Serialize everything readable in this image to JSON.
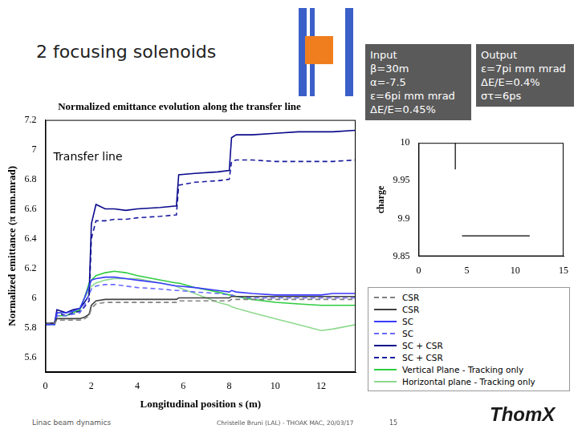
{
  "slide": {
    "title": "2 focusing solenoids",
    "input_box": {
      "heading": "Input",
      "lines": [
        "β=30m",
        "α=-7.5",
        "ε=6pi mm mrad",
        "ΔE/E=0.45%"
      ]
    },
    "output_box": {
      "heading": "Output",
      "lines": [
        "ε=7pi mm mrad",
        "ΔE/E=0.4%",
        "στ=6ps"
      ]
    },
    "footer": {
      "left": "Linac beam dynamics",
      "center": "Christelle Bruni (LAL) - THOAK MAC, 20/03/17",
      "page": "15"
    },
    "logo": "ThomX"
  },
  "chart_data": [
    {
      "type": "line",
      "title": "Normalized emittance evolution along the transfer line",
      "x_label": "Longitudinal position s (m)",
      "y_label": "Normalized emittance (π mm.mrad)",
      "annotation": "Transfer line",
      "x": [
        0,
        0.4,
        0.5,
        0.9,
        1.2,
        1.5,
        1.7,
        1.9,
        2.0,
        2.2,
        2.6,
        3.0,
        3.5,
        4.0,
        5.0,
        5.7,
        5.8,
        6.5,
        7.5,
        8.0,
        8.1,
        8.3,
        9.0,
        10.0,
        11.0,
        12.0,
        12.5,
        13.5
      ],
      "series": [
        {
          "name": "CSR",
          "color": "#808080",
          "line_style": "dashed",
          "values": [
            5.83,
            5.83,
            5.85,
            5.85,
            5.85,
            5.85,
            5.86,
            5.88,
            5.93,
            5.96,
            5.97,
            5.97,
            5.97,
            5.97,
            5.97,
            5.97,
            5.98,
            5.98,
            5.98,
            5.98,
            5.99,
            5.99,
            5.99,
            5.99,
            5.99,
            5.99,
            5.99,
            5.99
          ]
        },
        {
          "name": "CSR",
          "color": "#404040",
          "line_style": "solid",
          "values": [
            5.83,
            5.83,
            5.86,
            5.86,
            5.86,
            5.86,
            5.87,
            5.89,
            5.95,
            5.98,
            5.99,
            5.99,
            5.99,
            5.99,
            5.99,
            5.99,
            6.0,
            6.0,
            6.0,
            6.0,
            6.01,
            6.01,
            6.01,
            6.01,
            6.01,
            6.01,
            6.01,
            6.01
          ]
        },
        {
          "name": "SC",
          "color": "#3a3aff",
          "line_style": "solid",
          "values": [
            5.82,
            5.82,
            5.9,
            5.9,
            5.91,
            5.93,
            6.0,
            6.08,
            6.12,
            6.13,
            6.14,
            6.14,
            6.13,
            6.12,
            6.1,
            6.08,
            6.08,
            6.07,
            6.05,
            6.04,
            6.05,
            6.04,
            6.03,
            6.02,
            6.02,
            6.02,
            6.03,
            6.03
          ]
        },
        {
          "name": "SC",
          "color": "#6a6aff",
          "line_style": "dashed",
          "values": [
            5.82,
            5.82,
            5.88,
            5.88,
            5.89,
            5.9,
            5.95,
            6.02,
            6.06,
            6.08,
            6.09,
            6.09,
            6.08,
            6.07,
            6.06,
            6.05,
            6.05,
            6.04,
            6.03,
            6.02,
            6.02,
            6.01,
            6.0,
            6.0,
            6.0,
            6.0,
            6.0,
            6.0
          ]
        },
        {
          "name": "SC + CSR",
          "color": "#0a0a8c",
          "line_style": "solid",
          "values": [
            5.83,
            5.83,
            5.92,
            5.9,
            5.92,
            5.93,
            5.97,
            6.02,
            6.5,
            6.63,
            6.6,
            6.6,
            6.59,
            6.6,
            6.61,
            6.62,
            6.83,
            6.84,
            6.85,
            6.86,
            7.08,
            7.1,
            7.1,
            7.11,
            7.12,
            7.12,
            7.12,
            7.13
          ]
        },
        {
          "name": "SC + CSR",
          "color": "#1a1aa0",
          "line_style": "dashed",
          "values": [
            5.83,
            5.83,
            5.9,
            5.88,
            5.9,
            5.91,
            5.94,
            5.98,
            6.4,
            6.52,
            6.52,
            6.53,
            6.53,
            6.54,
            6.55,
            6.56,
            6.76,
            6.78,
            6.79,
            6.8,
            6.92,
            6.93,
            6.93,
            6.92,
            6.92,
            6.92,
            6.92,
            6.93
          ]
        },
        {
          "name": "Vertical Plane - Tracking only",
          "color": "#2ecc40",
          "line_style": "solid",
          "values": [
            5.82,
            5.82,
            5.88,
            5.88,
            5.9,
            5.92,
            6.0,
            6.1,
            6.12,
            6.15,
            6.17,
            6.18,
            6.17,
            6.15,
            6.12,
            6.1,
            6.1,
            6.07,
            6.04,
            6.02,
            6.02,
            6.01,
            5.99,
            5.97,
            5.96,
            5.95,
            5.95,
            5.95
          ]
        },
        {
          "name": "Horizontal plane - Tracking only",
          "color": "#8fd98f",
          "line_style": "solid",
          "values": [
            5.83,
            5.83,
            5.9,
            5.9,
            5.91,
            5.93,
            6.0,
            6.05,
            6.08,
            6.1,
            6.12,
            6.13,
            6.13,
            6.13,
            6.1,
            6.08,
            6.07,
            6.03,
            5.97,
            5.95,
            5.94,
            5.93,
            5.9,
            5.86,
            5.82,
            5.78,
            5.79,
            5.82
          ]
        }
      ],
      "xlim": [
        0,
        13.5
      ],
      "ylim": [
        5.5,
        7.2
      ],
      "xticks": [
        0,
        2,
        4,
        6,
        8,
        10,
        12
      ],
      "yticks": [
        5.6,
        5.8,
        6,
        6.2,
        6.4,
        6.6,
        6.8,
        7,
        7.2
      ],
      "grid": false,
      "legend": "right"
    },
    {
      "type": "line",
      "y_label": "charge",
      "x": [
        3.8,
        3.8,
        4.2,
        4.5,
        11.5
      ],
      "values": [
        10,
        9.965,
        null,
        9.877,
        9.877
      ],
      "color": "#000000",
      "xlim": [
        0,
        15
      ],
      "ylim": [
        9.85,
        10
      ],
      "xticks": [
        0,
        5,
        10,
        15
      ],
      "yticks": [
        9.85,
        9.9,
        9.95,
        10
      ],
      "grid": false
    }
  ]
}
